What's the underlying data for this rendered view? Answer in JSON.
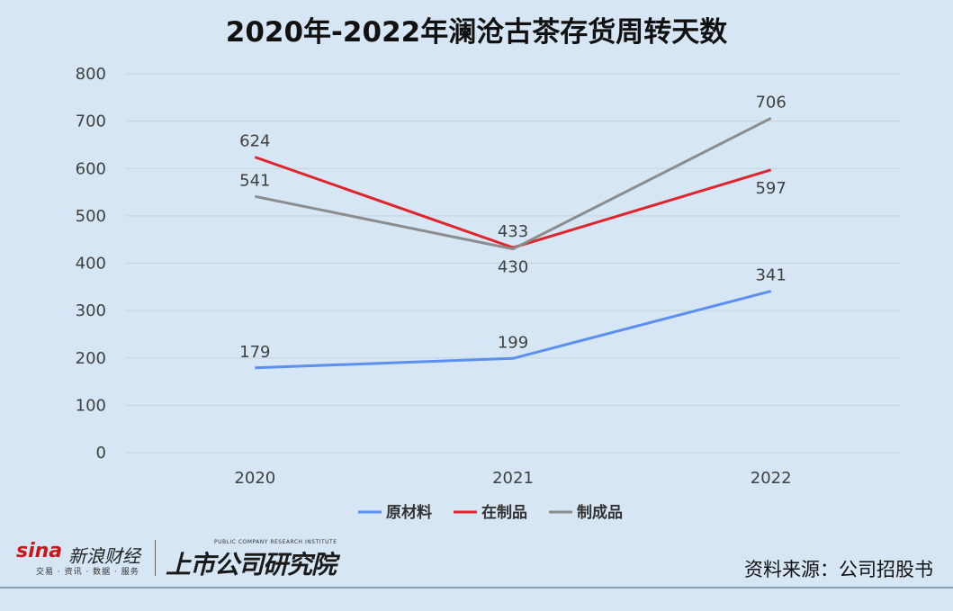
{
  "chart_data": {
    "type": "line",
    "title": "2020年-2022年澜沧古茶存货周转天数",
    "categories": [
      "2020",
      "2021",
      "2022"
    ],
    "ylim": [
      0,
      800
    ],
    "yticks": [
      0,
      100,
      200,
      300,
      400,
      500,
      600,
      700,
      800
    ],
    "grid": true,
    "legend_position": "bottom",
    "series": [
      {
        "name": "原材料",
        "color": "#5b8ff0",
        "values": [
          179,
          199,
          341
        ]
      },
      {
        "name": "在制品",
        "color": "#e0242c",
        "values": [
          624,
          433,
          597
        ]
      },
      {
        "name": "制成品",
        "color": "#8c8c8c",
        "values": [
          541,
          430,
          706
        ]
      }
    ]
  },
  "branding": {
    "sina_logo": "sina",
    "sina_name": "新浪财经",
    "sina_tagline": "交易 · 资讯 · 数据 · 服务",
    "research_name": "上市公司研究院",
    "research_en": "PUBLIC COMPANY RESEARCH INSTITUTE"
  },
  "source": "资料来源：公司招股书"
}
